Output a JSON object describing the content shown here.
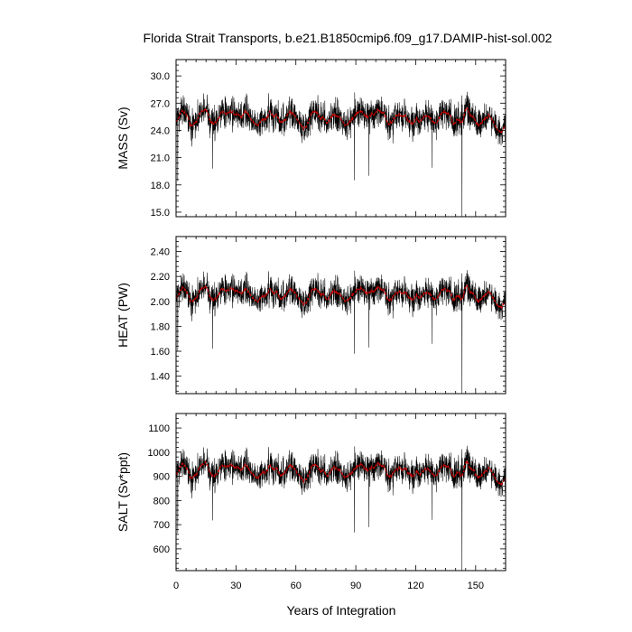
{
  "chart_data": [
    {
      "type": "line",
      "title": "Florida Strait Transports, b.e21.B1850cmip6.f09_g17.DAMIP-hist-sol.002",
      "ylabel": "MASS (Sv)",
      "xlabel": "",
      "xlim": [
        0,
        165
      ],
      "ylim": [
        14.5,
        31.8
      ],
      "yticks": [
        15.0,
        18.0,
        21.0,
        24.0,
        27.0,
        30.0
      ],
      "yticklabels": [
        "15.0",
        "18.0",
        "21.0",
        "24.0",
        "27.0",
        "30.0"
      ],
      "xticks": [
        0,
        30,
        60,
        90,
        120,
        150
      ],
      "series": [
        {
          "role": "monthly",
          "color": "#000000",
          "base": 25.3,
          "spread": 1.6,
          "smooth_amp": 0.9,
          "outliers": [
            [
              0.8,
              18.4
            ],
            [
              18.3,
              19.8
            ],
            [
              89.3,
              18.5
            ],
            [
              96.6,
              19.0
            ],
            [
              128.1,
              19.9
            ],
            [
              143.2,
              14.5
            ]
          ]
        },
        {
          "role": "running_mean",
          "color": "#cc0000"
        }
      ]
    },
    {
      "type": "line",
      "title": "",
      "ylabel": "HEAT (PW)",
      "xlabel": "",
      "xlim": [
        0,
        165
      ],
      "ylim": [
        1.26,
        2.52
      ],
      "yticks": [
        1.4,
        1.6,
        1.8,
        2.0,
        2.2,
        2.4
      ],
      "yticklabels": [
        "1.40",
        "1.60",
        "1.80",
        "2.00",
        "2.20",
        "2.40"
      ],
      "xticks": [
        0,
        30,
        60,
        90,
        120,
        150
      ],
      "series": [
        {
          "role": "monthly",
          "color": "#000000",
          "base": 2.05,
          "spread": 0.11,
          "smooth_amp": 0.06,
          "outliers": [
            [
              0.8,
              1.6
            ],
            [
              18.3,
              1.62
            ],
            [
              89.3,
              1.58
            ],
            [
              96.6,
              1.63
            ],
            [
              128.1,
              1.66
            ],
            [
              143.2,
              1.26
            ]
          ]
        },
        {
          "role": "running_mean",
          "color": "#cc0000"
        }
      ]
    },
    {
      "type": "line",
      "title": "",
      "ylabel": "SALT (Sv*ppt)",
      "xlabel": "Years of Integration",
      "xlim": [
        0,
        165
      ],
      "ylim": [
        510,
        1160
      ],
      "yticks": [
        600,
        700,
        800,
        900,
        1000,
        1100
      ],
      "yticklabels": [
        "600",
        "700",
        "800",
        "900",
        "1000",
        "1100"
      ],
      "xticks": [
        0,
        30,
        60,
        90,
        120,
        150
      ],
      "xticklabels": [
        "0",
        "30",
        "60",
        "90",
        "120",
        "150"
      ],
      "series": [
        {
          "role": "monthly",
          "color": "#000000",
          "base": 920,
          "spread": 58,
          "smooth_amp": 32,
          "outliers": [
            [
              0.8,
              665
            ],
            [
              18.3,
              718
            ],
            [
              89.3,
              668
            ],
            [
              96.6,
              690
            ],
            [
              128.1,
              720
            ],
            [
              143.2,
              510
            ]
          ]
        },
        {
          "role": "running_mean",
          "color": "#cc0000"
        }
      ]
    }
  ]
}
